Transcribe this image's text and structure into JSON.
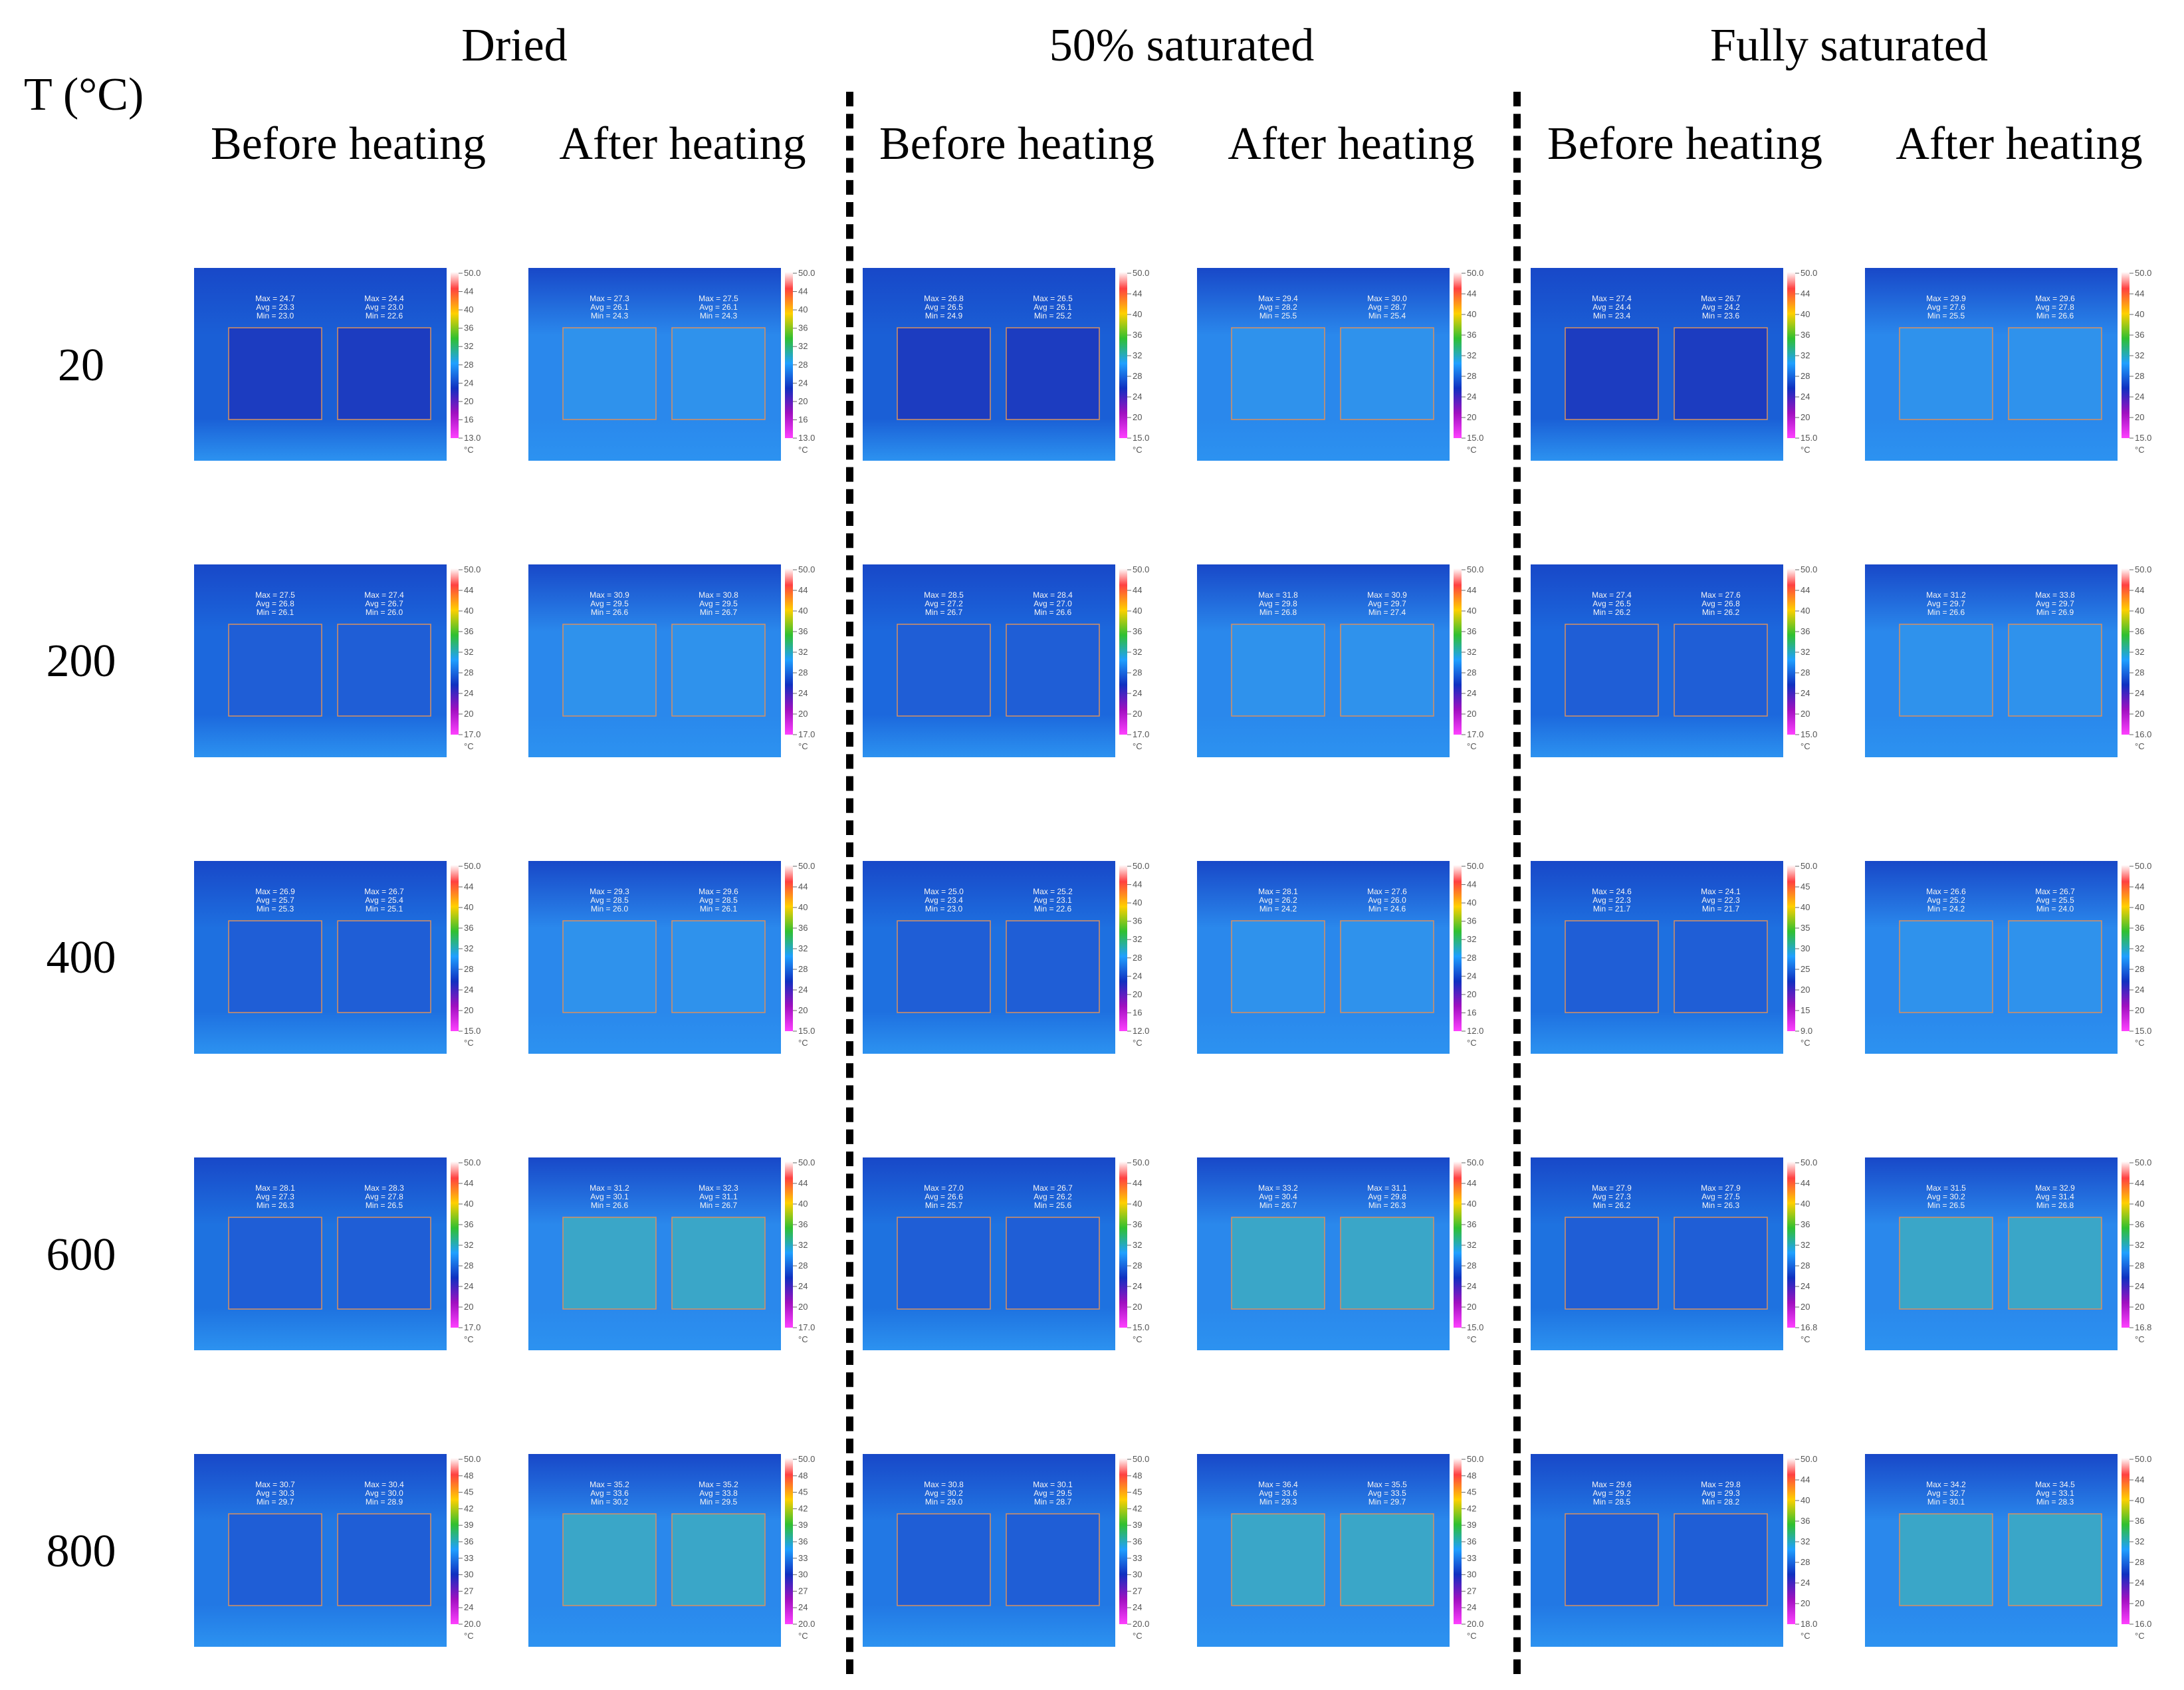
{
  "header": {
    "temperature_label": "T (°C)",
    "conditions": [
      "Dried",
      "50% saturated",
      "Fully saturated"
    ],
    "subheaders": [
      "Before heating",
      "After heating",
      "Before heating",
      "After heating",
      "Before heating",
      "After heating"
    ]
  },
  "temperatures": [
    "20",
    "200",
    "400",
    "600",
    "800"
  ],
  "scale_unit": "°C",
  "images": [
    [
      {
        "stats": [
          [
            "Max = 24.7",
            "Avg = 23.3",
            "Min = 23.0"
          ],
          [
            "Max = 24.4",
            "Avg = 23.0",
            "Min = 22.6"
          ]
        ],
        "scale": [
          "50.0",
          "44",
          "40",
          "36",
          "32",
          "28",
          "24",
          "20",
          "16",
          "13.0"
        ]
      },
      {
        "stats": [
          [
            "Max = 27.3",
            "Avg = 26.1",
            "Min = 24.3"
          ],
          [
            "Max = 27.5",
            "Avg = 26.1",
            "Min = 24.3"
          ]
        ],
        "scale": [
          "50.0",
          "44",
          "40",
          "36",
          "32",
          "28",
          "24",
          "20",
          "16",
          "13.0"
        ]
      },
      {
        "stats": [
          [
            "Max = 26.8",
            "Avg = 26.5",
            "Min = 24.9"
          ],
          [
            "Max = 26.5",
            "Avg = 26.1",
            "Min = 25.2"
          ]
        ],
        "scale": [
          "50.0",
          "44",
          "40",
          "36",
          "32",
          "28",
          "24",
          "20",
          "15.0"
        ]
      },
      {
        "stats": [
          [
            "Max = 29.4",
            "Avg = 28.2",
            "Min = 25.5"
          ],
          [
            "Max = 30.0",
            "Avg = 28.7",
            "Min = 25.4"
          ]
        ],
        "scale": [
          "50.0",
          "44",
          "40",
          "36",
          "32",
          "28",
          "24",
          "20",
          "15.0"
        ]
      },
      {
        "stats": [
          [
            "Max = 27.4",
            "Avg = 24.4",
            "Min = 23.4"
          ],
          [
            "Max = 26.7",
            "Avg = 24.2",
            "Min = 23.6"
          ]
        ],
        "scale": [
          "50.0",
          "44",
          "40",
          "36",
          "32",
          "28",
          "24",
          "20",
          "15.0"
        ]
      },
      {
        "stats": [
          [
            "Max = 29.9",
            "Avg = 27.6",
            "Min = 25.5"
          ],
          [
            "Max = 29.6",
            "Avg = 27.8",
            "Min = 26.6"
          ]
        ],
        "scale": [
          "50.0",
          "44",
          "40",
          "36",
          "32",
          "28",
          "24",
          "20",
          "15.0"
        ]
      }
    ],
    [
      {
        "stats": [
          [
            "Max = 27.5",
            "Avg = 26.8",
            "Min = 26.1"
          ],
          [
            "Max = 27.4",
            "Avg = 26.7",
            "Min = 26.0"
          ]
        ],
        "scale": [
          "50.0",
          "44",
          "40",
          "36",
          "32",
          "28",
          "24",
          "20",
          "17.0"
        ]
      },
      {
        "stats": [
          [
            "Max = 30.9",
            "Avg = 29.5",
            "Min = 26.6"
          ],
          [
            "Max = 30.8",
            "Avg = 29.5",
            "Min = 26.7"
          ]
        ],
        "scale": [
          "50.0",
          "44",
          "40",
          "36",
          "32",
          "28",
          "24",
          "20",
          "17.0"
        ]
      },
      {
        "stats": [
          [
            "Max = 28.5",
            "Avg = 27.2",
            "Min = 26.7"
          ],
          [
            "Max = 28.4",
            "Avg = 27.0",
            "Min = 26.6"
          ]
        ],
        "scale": [
          "50.0",
          "44",
          "40",
          "36",
          "32",
          "28",
          "24",
          "20",
          "17.0"
        ]
      },
      {
        "stats": [
          [
            "Max = 31.8",
            "Avg = 29.8",
            "Min = 26.8"
          ],
          [
            "Max = 30.9",
            "Avg = 29.7",
            "Min = 27.4"
          ]
        ],
        "scale": [
          "50.0",
          "44",
          "40",
          "36",
          "32",
          "28",
          "24",
          "20",
          "17.0"
        ]
      },
      {
        "stats": [
          [
            "Max = 27.4",
            "Avg = 26.5",
            "Min = 26.2"
          ],
          [
            "Max = 27.6",
            "Avg = 26.8",
            "Min = 26.2"
          ]
        ],
        "scale": [
          "50.0",
          "44",
          "40",
          "36",
          "32",
          "28",
          "24",
          "20",
          "15.0"
        ]
      },
      {
        "stats": [
          [
            "Max = 31.2",
            "Avg = 29.7",
            "Min = 26.6"
          ],
          [
            "Max = 33.8",
            "Avg = 29.7",
            "Min = 26.9"
          ]
        ],
        "scale": [
          "50.0",
          "44",
          "40",
          "36",
          "32",
          "28",
          "24",
          "20",
          "16.0"
        ]
      }
    ],
    [
      {
        "stats": [
          [
            "Max = 26.9",
            "Avg = 25.7",
            "Min = 25.3"
          ],
          [
            "Max = 26.7",
            "Avg = 25.4",
            "Min = 25.1"
          ]
        ],
        "scale": [
          "50.0",
          "44",
          "40",
          "36",
          "32",
          "28",
          "24",
          "20",
          "15.0"
        ]
      },
      {
        "stats": [
          [
            "Max = 29.3",
            "Avg = 28.5",
            "Min = 26.0"
          ],
          [
            "Max = 29.6",
            "Avg = 28.5",
            "Min = 26.1"
          ]
        ],
        "scale": [
          "50.0",
          "44",
          "40",
          "36",
          "32",
          "28",
          "24",
          "20",
          "15.0"
        ]
      },
      {
        "stats": [
          [
            "Max = 25.0",
            "Avg = 23.4",
            "Min = 23.0"
          ],
          [
            "Max = 25.2",
            "Avg = 23.1",
            "Min = 22.6"
          ]
        ],
        "scale": [
          "50.0",
          "44",
          "40",
          "36",
          "32",
          "28",
          "24",
          "20",
          "16",
          "12.0"
        ]
      },
      {
        "stats": [
          [
            "Max = 28.1",
            "Avg = 26.2",
            "Min = 24.2"
          ],
          [
            "Max = 27.6",
            "Avg = 26.0",
            "Min = 24.6"
          ]
        ],
        "scale": [
          "50.0",
          "44",
          "40",
          "36",
          "32",
          "28",
          "24",
          "20",
          "16",
          "12.0"
        ]
      },
      {
        "stats": [
          [
            "Max = 24.6",
            "Avg = 22.3",
            "Min = 21.7"
          ],
          [
            "Max = 24.1",
            "Avg = 22.3",
            "Min = 21.7"
          ]
        ],
        "scale": [
          "50.0",
          "45",
          "40",
          "35",
          "30",
          "25",
          "20",
          "15",
          "9.0"
        ]
      },
      {
        "stats": [
          [
            "Max = 26.6",
            "Avg = 25.2",
            "Min = 24.2"
          ],
          [
            "Max = 26.7",
            "Avg = 25.5",
            "Min = 24.0"
          ]
        ],
        "scale": [
          "50.0",
          "44",
          "40",
          "36",
          "32",
          "28",
          "24",
          "20",
          "15.0"
        ]
      }
    ],
    [
      {
        "stats": [
          [
            "Max = 28.1",
            "Avg = 27.3",
            "Min = 26.3"
          ],
          [
            "Max = 28.3",
            "Avg = 27.8",
            "Min = 26.5"
          ]
        ],
        "scale": [
          "50.0",
          "44",
          "40",
          "36",
          "32",
          "28",
          "24",
          "20",
          "17.0"
        ]
      },
      {
        "stats": [
          [
            "Max = 31.2",
            "Avg = 30.1",
            "Min = 26.6"
          ],
          [
            "Max = 32.3",
            "Avg = 31.1",
            "Min = 26.7"
          ]
        ],
        "scale": [
          "50.0",
          "44",
          "40",
          "36",
          "32",
          "28",
          "24",
          "20",
          "17.0"
        ]
      },
      {
        "stats": [
          [
            "Max = 27.0",
            "Avg = 26.6",
            "Min = 25.7"
          ],
          [
            "Max = 26.7",
            "Avg = 26.2",
            "Min = 25.6"
          ]
        ],
        "scale": [
          "50.0",
          "44",
          "40",
          "36",
          "32",
          "28",
          "24",
          "20",
          "15.0"
        ]
      },
      {
        "stats": [
          [
            "Max = 33.2",
            "Avg = 30.4",
            "Min = 26.7"
          ],
          [
            "Max = 31.1",
            "Avg = 29.8",
            "Min = 26.3"
          ]
        ],
        "scale": [
          "50.0",
          "44",
          "40",
          "36",
          "32",
          "28",
          "24",
          "20",
          "15.0"
        ]
      },
      {
        "stats": [
          [
            "Max = 27.9",
            "Avg = 27.3",
            "Min = 26.2"
          ],
          [
            "Max = 27.9",
            "Avg = 27.5",
            "Min = 26.3"
          ]
        ],
        "scale": [
          "50.0",
          "44",
          "40",
          "36",
          "32",
          "28",
          "24",
          "20",
          "16.8"
        ]
      },
      {
        "stats": [
          [
            "Max = 31.5",
            "Avg = 30.2",
            "Min = 26.5"
          ],
          [
            "Max = 32.9",
            "Avg = 31.4",
            "Min = 26.8"
          ]
        ],
        "scale": [
          "50.0",
          "44",
          "40",
          "36",
          "32",
          "28",
          "24",
          "20",
          "16.8"
        ]
      }
    ],
    [
      {
        "stats": [
          [
            "Max = 30.7",
            "Avg = 30.3",
            "Min = 29.7"
          ],
          [
            "Max = 30.4",
            "Avg = 30.0",
            "Min = 28.9"
          ]
        ],
        "scale": [
          "50.0",
          "48",
          "45",
          "42",
          "39",
          "36",
          "33",
          "30",
          "27",
          "24",
          "20.0"
        ]
      },
      {
        "stats": [
          [
            "Max = 35.2",
            "Avg = 33.6",
            "Min = 30.2"
          ],
          [
            "Max = 35.2",
            "Avg = 33.8",
            "Min = 29.5"
          ]
        ],
        "scale": [
          "50.0",
          "48",
          "45",
          "42",
          "39",
          "36",
          "33",
          "30",
          "27",
          "24",
          "20.0"
        ]
      },
      {
        "stats": [
          [
            "Max = 30.8",
            "Avg = 30.2",
            "Min = 29.0"
          ],
          [
            "Max = 30.1",
            "Avg = 29.5",
            "Min = 28.7"
          ]
        ],
        "scale": [
          "50.0",
          "48",
          "45",
          "42",
          "39",
          "36",
          "33",
          "30",
          "27",
          "24",
          "20.0"
        ]
      },
      {
        "stats": [
          [
            "Max = 36.4",
            "Avg = 33.6",
            "Min = 29.3"
          ],
          [
            "Max = 35.5",
            "Avg = 33.5",
            "Min = 29.7"
          ]
        ],
        "scale": [
          "50.0",
          "48",
          "45",
          "42",
          "39",
          "36",
          "33",
          "30",
          "27",
          "24",
          "20.0"
        ]
      },
      {
        "stats": [
          [
            "Max = 29.6",
            "Avg = 29.2",
            "Min = 28.5"
          ],
          [
            "Max = 29.8",
            "Avg = 29.3",
            "Min = 28.2"
          ]
        ],
        "scale": [
          "50.0",
          "44",
          "40",
          "36",
          "32",
          "28",
          "24",
          "20",
          "18.0"
        ]
      },
      {
        "stats": [
          [
            "Max = 34.2",
            "Avg = 32.7",
            "Min = 30.1"
          ],
          [
            "Max = 34.5",
            "Avg = 33.1",
            "Min = 28.3"
          ]
        ],
        "scale": [
          "50.0",
          "44",
          "40",
          "36",
          "32",
          "28",
          "24",
          "20",
          "16.0"
        ]
      }
    ]
  ],
  "colors": {
    "row_tint": [
      "#1a5fd6",
      "#1c68dd",
      "#1e70e0",
      "#1e72e0",
      "#2278e4"
    ],
    "after_tint": "#2a88ec"
  }
}
